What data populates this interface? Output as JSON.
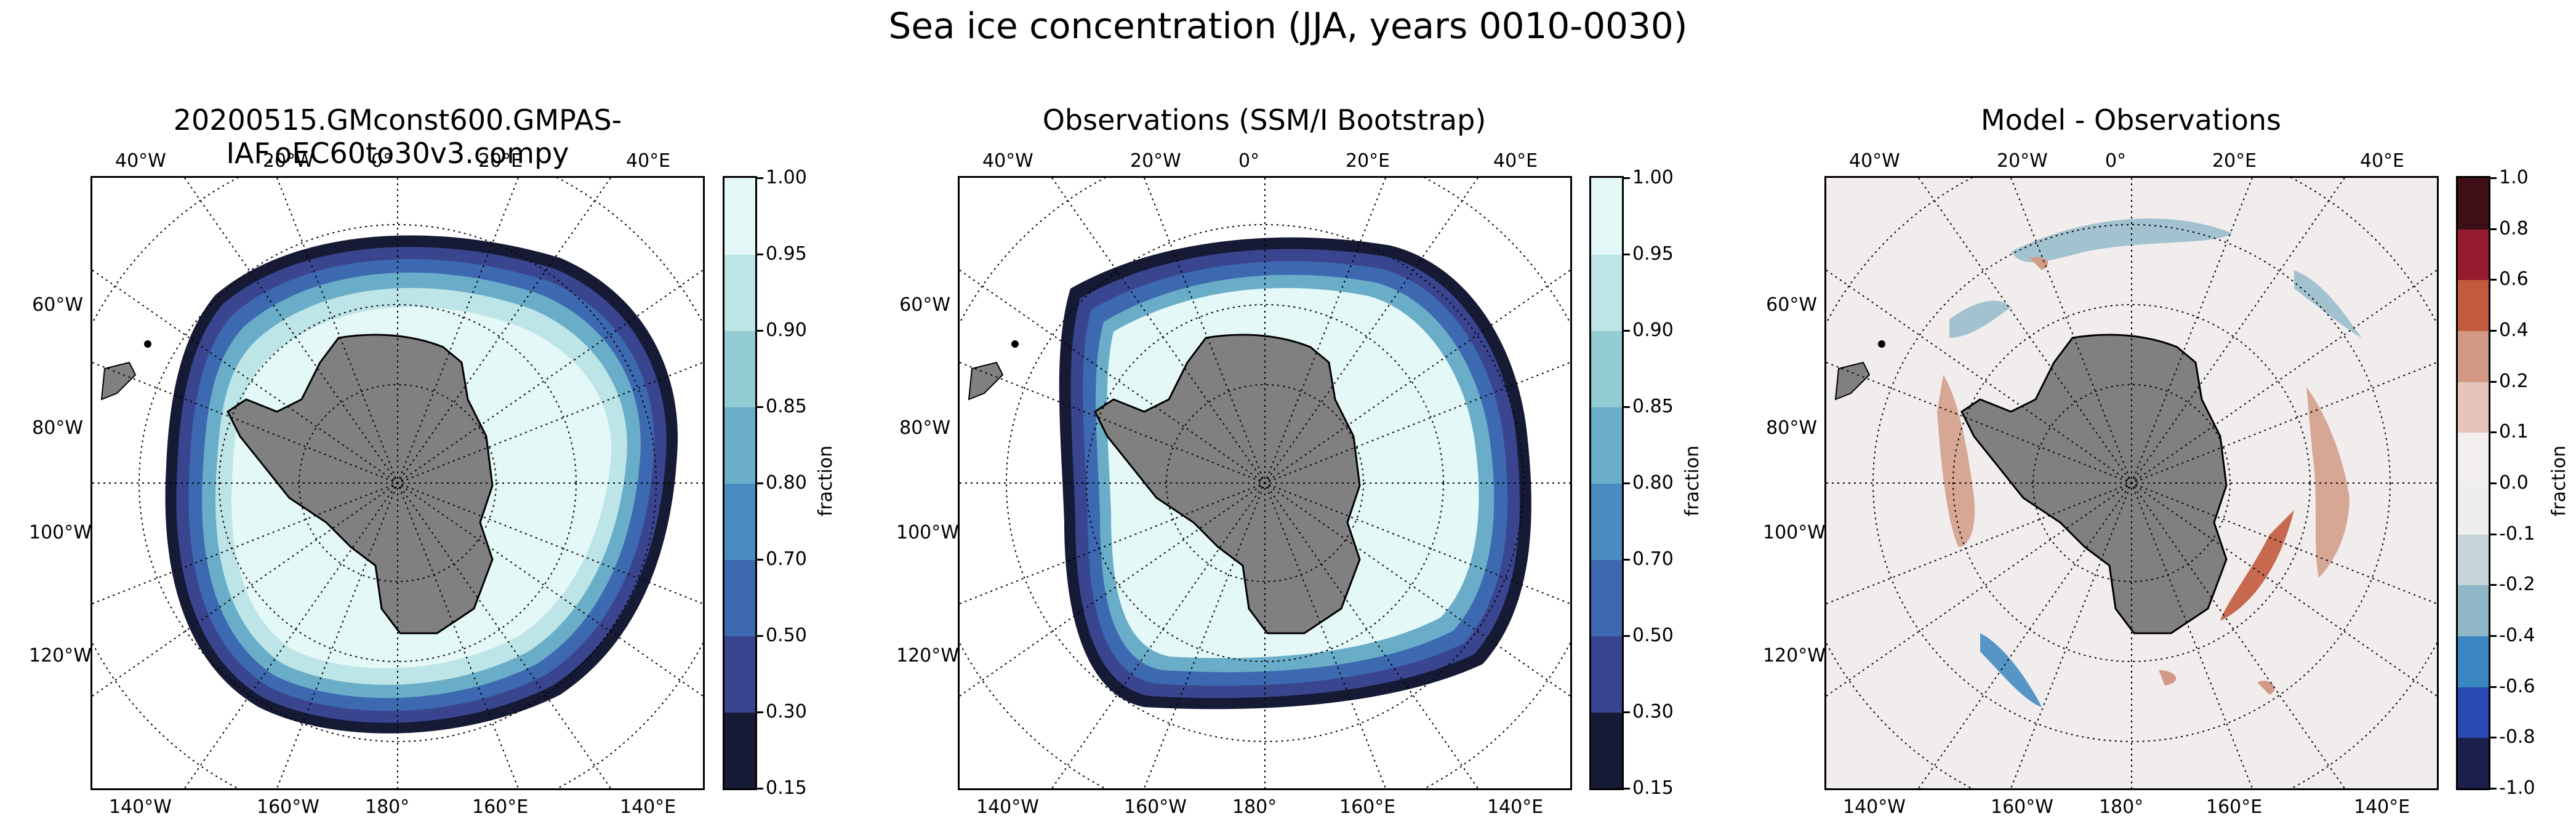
{
  "suptitle": "Sea ice concentration (JJA, years 0010-0030)",
  "panels": [
    {
      "title": "20200515.GMconst600.GMPAS-IAF.oEC60to30v3.compy",
      "kind": "model"
    },
    {
      "title": "Observations (SSM/I Bootstrap)",
      "kind": "obs"
    },
    {
      "title": "Model - Observations",
      "kind": "diff"
    }
  ],
  "lon_labels_top": [
    "40°W",
    "20°W",
    "0°",
    "20°E",
    "40°E"
  ],
  "lon_labels_bottom": [
    "140°W",
    "160°W",
    "180°",
    "160°E",
    "140°E"
  ],
  "lat_labels_left": [
    "60°W",
    "80°W",
    "100°W",
    "120°W"
  ],
  "colorbar_main": {
    "label": "fraction",
    "ticks": [
      "0.15",
      "0.30",
      "0.50",
      "0.70",
      "0.80",
      "0.85",
      "0.90",
      "0.95",
      "1.00"
    ],
    "colors": [
      "#171a35",
      "#3a4590",
      "#3d69b0",
      "#4a8cc2",
      "#69adc8",
      "#93ccd2",
      "#bde4e6",
      "#e4f8f8"
    ]
  },
  "colorbar_diff": {
    "label": "fraction",
    "ticks": [
      "-1.0",
      "-0.8",
      "-0.6",
      "-0.4",
      "-0.2",
      "-0.1",
      "0.0",
      "0.1",
      "0.2",
      "0.4",
      "0.6",
      "0.8",
      "1.0"
    ],
    "colors": [
      "#1b1f4a",
      "#2a49b3",
      "#3a86c0",
      "#8fb7c7",
      "#c4d4d8",
      "#eeeeee",
      "#f2eeee",
      "#e5c5bb",
      "#d29a86",
      "#c25a3d",
      "#961b2e",
      "#3d1018"
    ]
  },
  "colors": {
    "land": "#808080",
    "ocean_diff_bg": "#f2eded"
  }
}
